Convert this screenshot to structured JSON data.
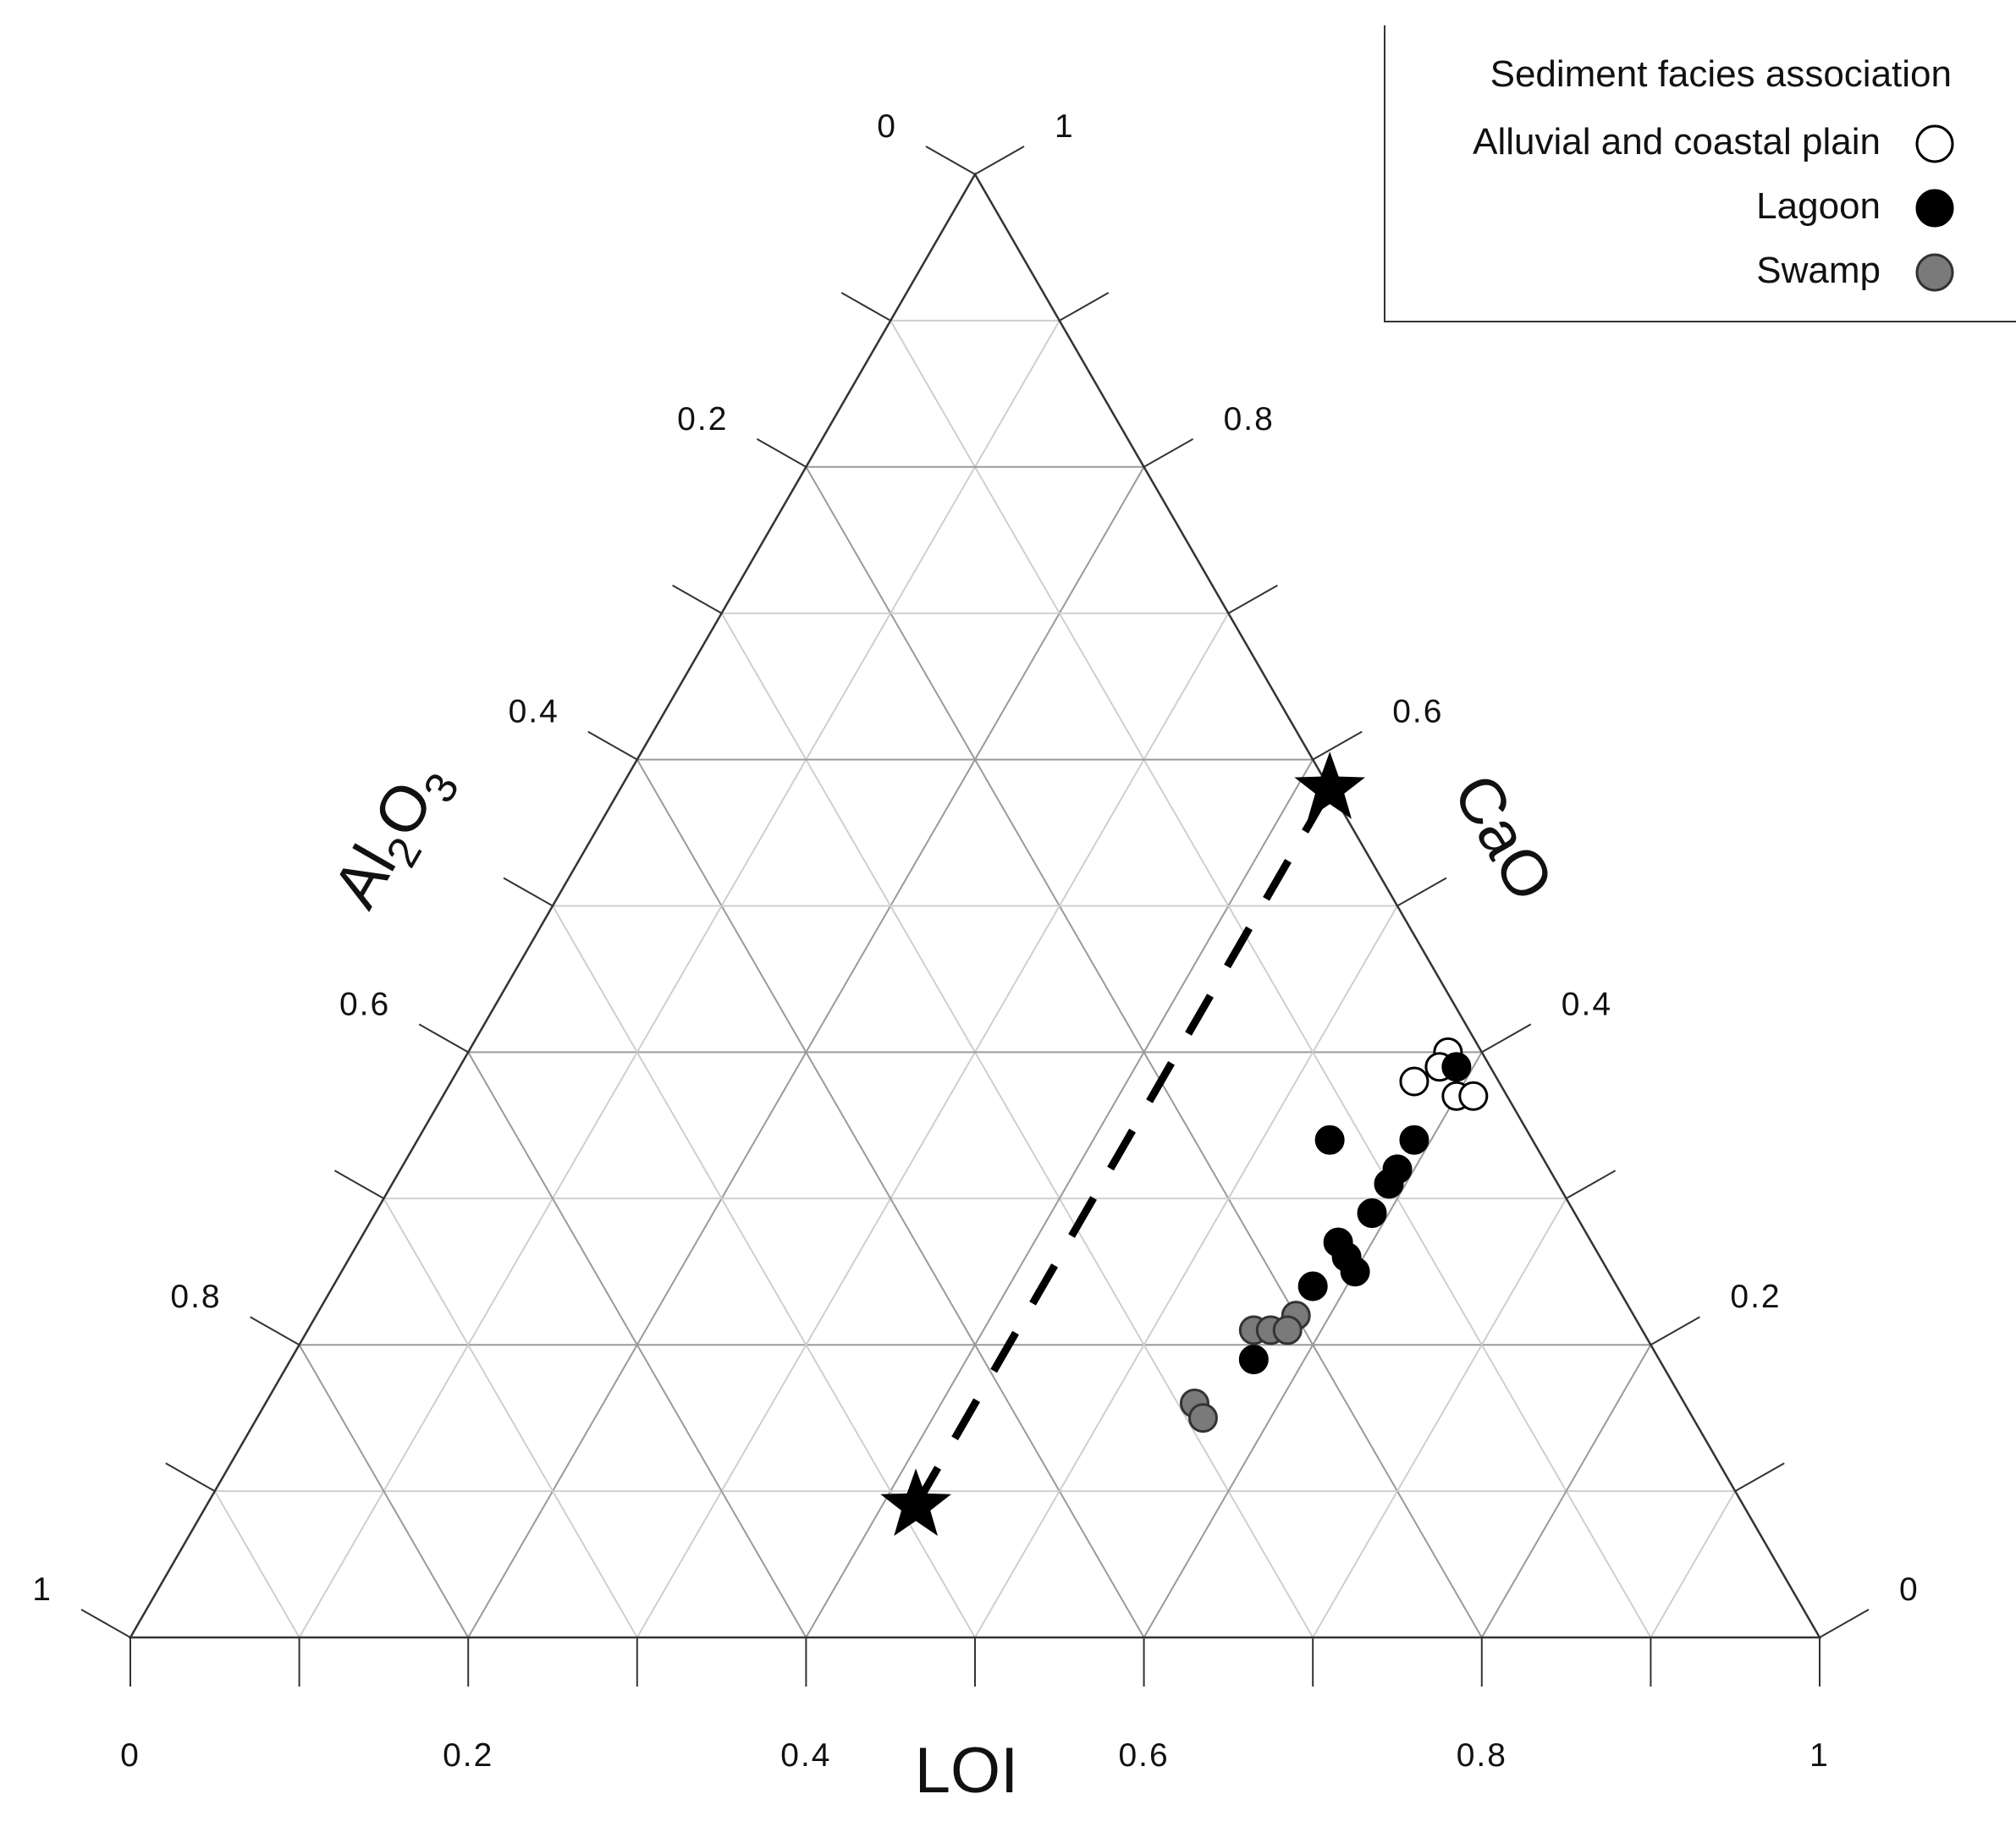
{
  "chart_data": {
    "type": "scatter",
    "subtype": "ternary",
    "axes": {
      "bottom": {
        "label": "LOI",
        "ticks": [
          "0",
          "0.2",
          "0.4",
          "0.6",
          "0.8",
          "1"
        ]
      },
      "left": {
        "label_main": "Al",
        "label_sub1": "2",
        "label_mid": "O",
        "label_sub2": "3",
        "ticks": [
          "1",
          "0.8",
          "0.6",
          "0.4",
          "0.2",
          "0"
        ]
      },
      "right": {
        "label": "CaO",
        "ticks": [
          "0",
          "0.2",
          "0.4",
          "0.6",
          "0.8",
          "1"
        ]
      }
    },
    "grid": true,
    "grid_step": 0.1,
    "legend": {
      "title": "Sediment facies association",
      "position": "top-right",
      "entries": [
        {
          "label": "Alluvial and coastal plain",
          "marker": "open-circle",
          "color": "#ffffff"
        },
        {
          "label": "Lagoon",
          "marker": "filled-circle",
          "color": "#000000"
        },
        {
          "label": "Swamp",
          "marker": "filled-circle",
          "color": "#7a7a7a"
        }
      ]
    },
    "series": [
      {
        "name": "Alluvial and coastal plain",
        "marker": "open-circle",
        "points": [
          {
            "LOI": 0.58,
            "Al2O3": 0.02,
            "CaO": 0.4
          },
          {
            "LOI": 0.58,
            "Al2O3": 0.03,
            "CaO": 0.39
          },
          {
            "LOI": 0.57,
            "Al2O3": 0.05,
            "CaO": 0.38
          },
          {
            "LOI": 0.6,
            "Al2O3": 0.03,
            "CaO": 0.37
          },
          {
            "LOI": 0.61,
            "Al2O3": 0.02,
            "CaO": 0.37
          }
        ]
      },
      {
        "name": "Lagoon",
        "marker": "filled-circle",
        "points": [
          {
            "LOI": 0.59,
            "Al2O3": 0.02,
            "CaO": 0.39
          },
          {
            "LOI": 0.54,
            "Al2O3": 0.12,
            "CaO": 0.34
          },
          {
            "LOI": 0.59,
            "Al2O3": 0.07,
            "CaO": 0.34
          },
          {
            "LOI": 0.59,
            "Al2O3": 0.09,
            "CaO": 0.32
          },
          {
            "LOI": 0.59,
            "Al2O3": 0.1,
            "CaO": 0.31
          },
          {
            "LOI": 0.59,
            "Al2O3": 0.12,
            "CaO": 0.29
          },
          {
            "LOI": 0.58,
            "Al2O3": 0.15,
            "CaO": 0.27
          },
          {
            "LOI": 0.59,
            "Al2O3": 0.15,
            "CaO": 0.26
          },
          {
            "LOI": 0.6,
            "Al2O3": 0.15,
            "CaO": 0.25
          },
          {
            "LOI": 0.58,
            "Al2O3": 0.18,
            "CaO": 0.24
          },
          {
            "LOI": 0.57,
            "Al2O3": 0.24,
            "CaO": 0.19
          }
        ]
      },
      {
        "name": "Swamp",
        "marker": "filled-circle",
        "points": [
          {
            "LOI": 0.56,
            "Al2O3": 0.23,
            "CaO": 0.21
          },
          {
            "LOI": 0.57,
            "Al2O3": 0.22,
            "CaO": 0.21
          },
          {
            "LOI": 0.58,
            "Al2O3": 0.2,
            "CaO": 0.22
          },
          {
            "LOI": 0.58,
            "Al2O3": 0.21,
            "CaO": 0.21
          },
          {
            "LOI": 0.55,
            "Al2O3": 0.29,
            "CaO": 0.16
          },
          {
            "LOI": 0.56,
            "Al2O3": 0.29,
            "CaO": 0.15
          }
        ]
      }
    ],
    "endmembers": [
      {
        "marker": "star",
        "LOI": 0.42,
        "Al2O3": 0.49,
        "CaO": 0.09
      },
      {
        "marker": "star",
        "LOI": 0.42,
        "Al2O3": 0.0,
        "CaO": 0.58
      }
    ],
    "mixing_line": {
      "style": "dashed",
      "from": 0,
      "to": 1
    }
  }
}
